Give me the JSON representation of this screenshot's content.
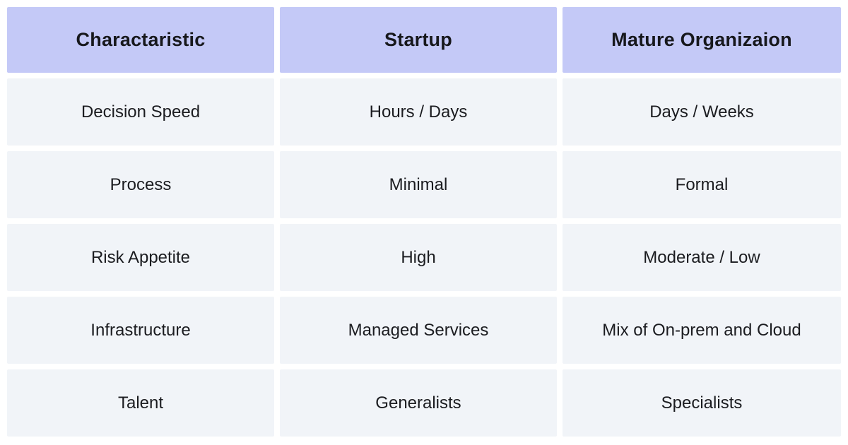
{
  "chart_data": {
    "type": "table",
    "title": "",
    "columns": [
      "Charactaristic",
      "Startup",
      "Mature Organizaion"
    ],
    "rows": [
      [
        "Decision Speed",
        "Hours / Days",
        "Days / Weeks"
      ],
      [
        "Process",
        "Minimal",
        "Formal"
      ],
      [
        "Risk Appetite",
        "High",
        "Moderate / Low"
      ],
      [
        "Infrastructure",
        "Managed Services",
        "Mix of On-prem and Cloud"
      ],
      [
        "Talent",
        "Generalists",
        "Specialists"
      ]
    ],
    "layout": {
      "header_position": "top",
      "grid": "white gutters between cells",
      "alignment": "center"
    },
    "colors": {
      "header_bg": "#c4c9f7",
      "cell_bg": "#f1f4f8",
      "text": "#17181c",
      "page_bg": "#ffffff"
    }
  }
}
